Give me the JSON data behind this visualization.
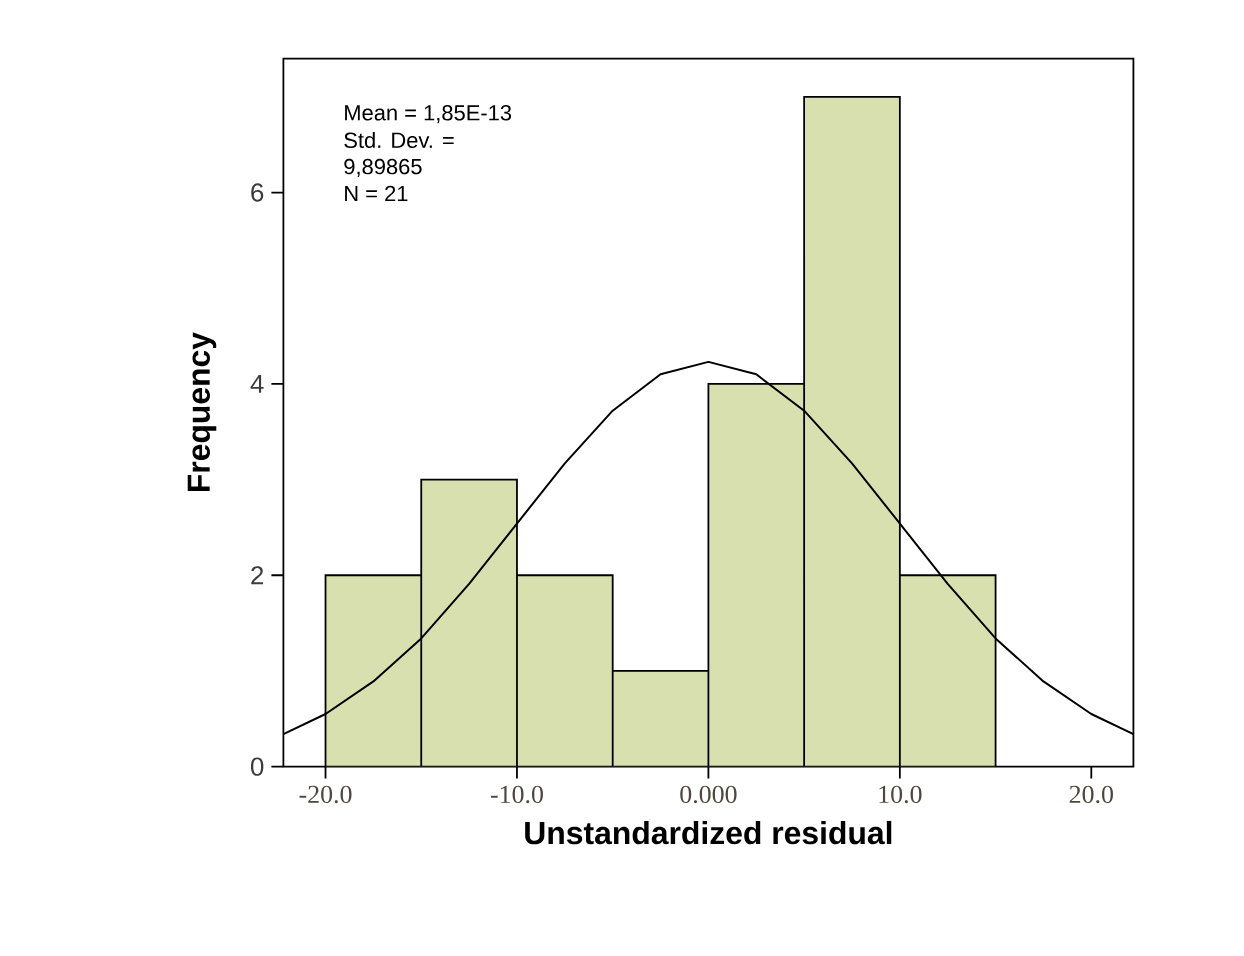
{
  "chart_data": {
    "type": "histogram",
    "xlabel": "Unstandardized residual",
    "ylabel": "Frequency",
    "bins": [
      -20,
      -15,
      -10,
      -5,
      0,
      5,
      10,
      15
    ],
    "values": [
      2,
      3,
      2,
      1,
      4,
      7,
      2
    ],
    "color": "#d9e0b0",
    "series": [
      {
        "type": "line",
        "color": "#000000",
        "x": [
          -22.2,
          -20,
          -17.5,
          -15,
          -12.5,
          -10,
          -7.5,
          -5,
          -2.5,
          0,
          2.5,
          5,
          7.5,
          10,
          12.5,
          15,
          17.5,
          20,
          22.2
        ],
        "values": [
          0.34,
          0.55,
          0.89,
          1.34,
          1.91,
          2.54,
          3.17,
          3.72,
          4.1,
          4.23,
          4.1,
          3.72,
          3.17,
          2.54,
          1.91,
          1.34,
          0.89,
          0.55,
          0.34
        ]
      }
    ],
    "annotations": [
      "Mean = 1,85E-13",
      "Std. Dev. =",
      "9,89865",
      "N = 21"
    ],
    "xlim": [
      -22.2,
      22.2
    ],
    "ylim": [
      0,
      7.4
    ],
    "xticks": [
      {
        "value": -20,
        "label": "-20.0"
      },
      {
        "value": -10,
        "label": "-10.0"
      },
      {
        "value": 0,
        "label": "0.000"
      },
      {
        "value": 10,
        "label": "10.0"
      },
      {
        "value": 20,
        "label": "20.0"
      }
    ],
    "yticks": [
      0,
      2,
      4,
      6
    ],
    "grid": false
  }
}
